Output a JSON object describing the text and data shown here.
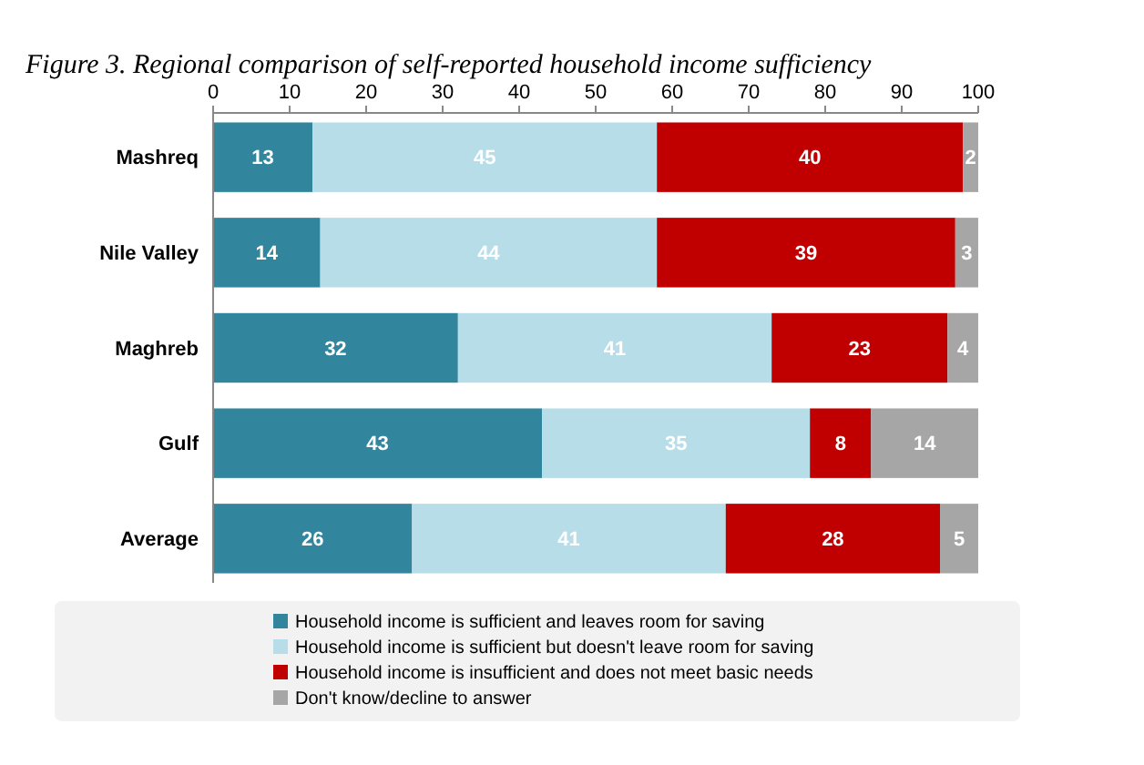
{
  "chart_data": {
    "type": "bar",
    "orientation": "horizontal",
    "stacked": true,
    "title": "Figure 3. Regional comparison of self-reported household income sufficiency",
    "categories": [
      "Mashreq",
      "Nile Valley",
      "Maghreb",
      "Gulf",
      "Average"
    ],
    "series": [
      {
        "name": "Household income is sufficient and leaves room for saving",
        "color": "#31859c",
        "values": [
          13,
          14,
          32,
          43,
          26
        ]
      },
      {
        "name": "Household income is sufficient but doesn't leave room for saving",
        "color": "#b7dde8",
        "values": [
          45,
          44,
          41,
          35,
          41
        ]
      },
      {
        "name": "Household income is insufficient and does not meet basic needs",
        "color": "#c00000",
        "values": [
          40,
          39,
          23,
          8,
          28
        ]
      },
      {
        "name": "Don't know/decline to answer",
        "color": "#a6a6a6",
        "values": [
          2,
          3,
          4,
          14,
          5
        ]
      }
    ],
    "xlim": [
      0,
      100
    ],
    "xticks": [
      0,
      10,
      20,
      30,
      40,
      50,
      60,
      70,
      80,
      90,
      100
    ],
    "data_labels": true,
    "legend": "bottom",
    "grid": false
  }
}
